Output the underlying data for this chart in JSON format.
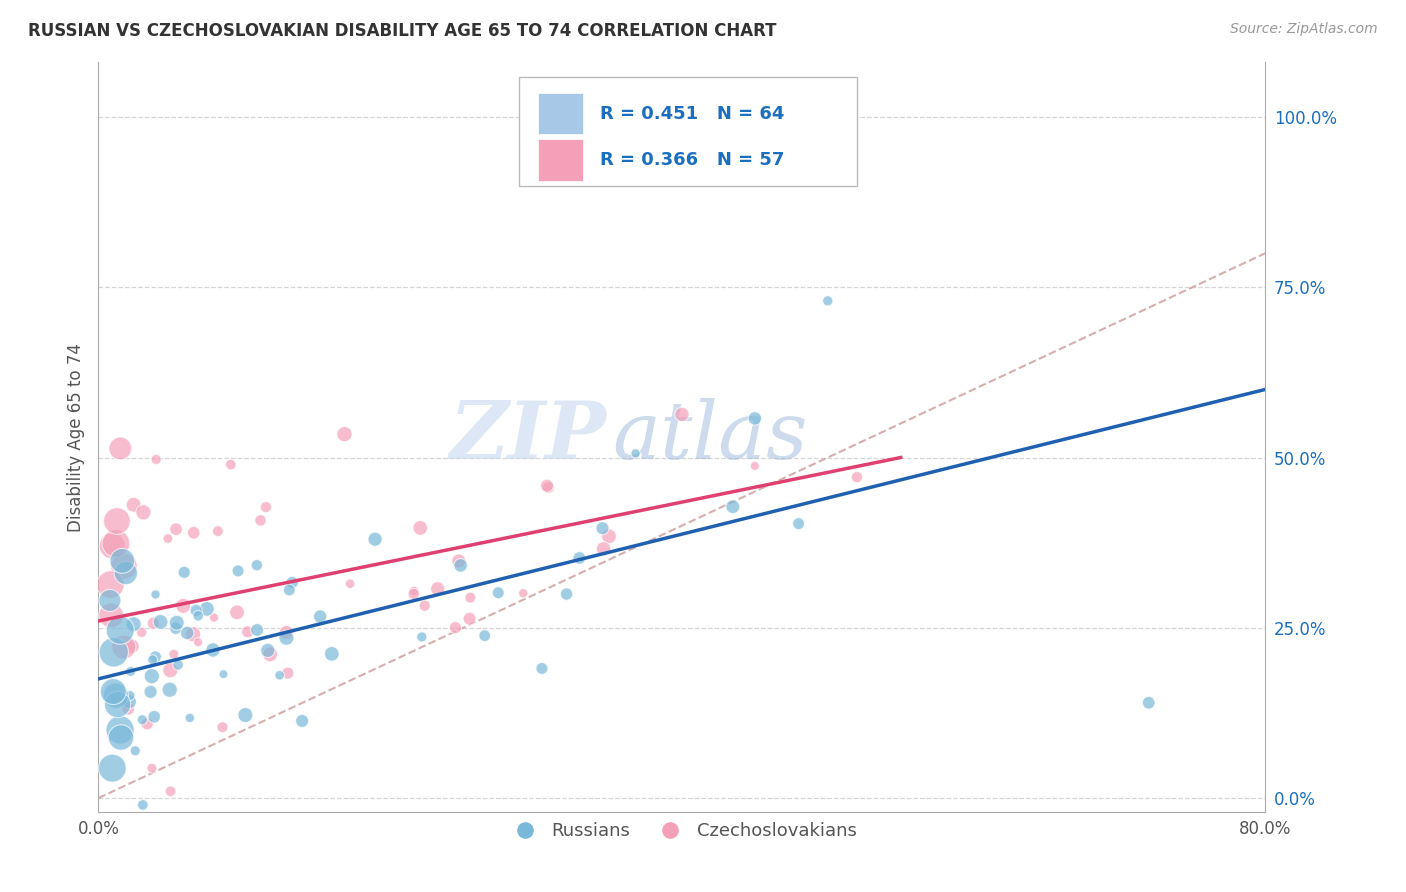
{
  "title": "RUSSIAN VS CZECHOSLOVAKIAN DISABILITY AGE 65 TO 74 CORRELATION CHART",
  "source_text": "Source: ZipAtlas.com",
  "ylabel": "Disability Age 65 to 74",
  "xlim": [
    0.0,
    0.8
  ],
  "ylim": [
    -0.02,
    1.08
  ],
  "yticks": [
    0.0,
    0.25,
    0.5,
    0.75,
    1.0
  ],
  "ytick_labels": [
    "0.0%",
    "25.0%",
    "50.0%",
    "75.0%",
    "100.0%"
  ],
  "xticks": [
    0.0,
    0.8
  ],
  "xtick_labels": [
    "0.0%",
    "80.0%"
  ],
  "legend_text_color": "#1a6fbf",
  "watermark_zip": "ZIP",
  "watermark_atlas": "atlas",
  "watermark_color": "#c8d8f0",
  "russian_color": "#7ab8d9",
  "russian_edge_color": "#7ab8d9",
  "czechoslovakian_color": "#f4a0b8",
  "czechoslovakian_edge_color": "#f4a0b8",
  "russian_line_color": "#2060b0",
  "czechoslovakian_line_color": "#e04070",
  "ref_line_color": "#d0a0a0",
  "grid_color": "#cccccc",
  "background_color": "#ffffff",
  "axis_color": "#aaaaaa",
  "russian_line": {
    "x0": 0.0,
    "x1": 0.8,
    "y0": 0.175,
    "y1": 0.6
  },
  "czechoslovakian_line": {
    "x0": 0.0,
    "x1": 0.55,
    "y0": 0.26,
    "y1": 0.5
  },
  "ref_line": {
    "x0": 0.0,
    "x1": 0.8,
    "y0": 0.0,
    "y1": 0.8
  },
  "legend_box_color_russian": "#a8c8e8",
  "legend_box_color_czech": "#f4a0b8"
}
